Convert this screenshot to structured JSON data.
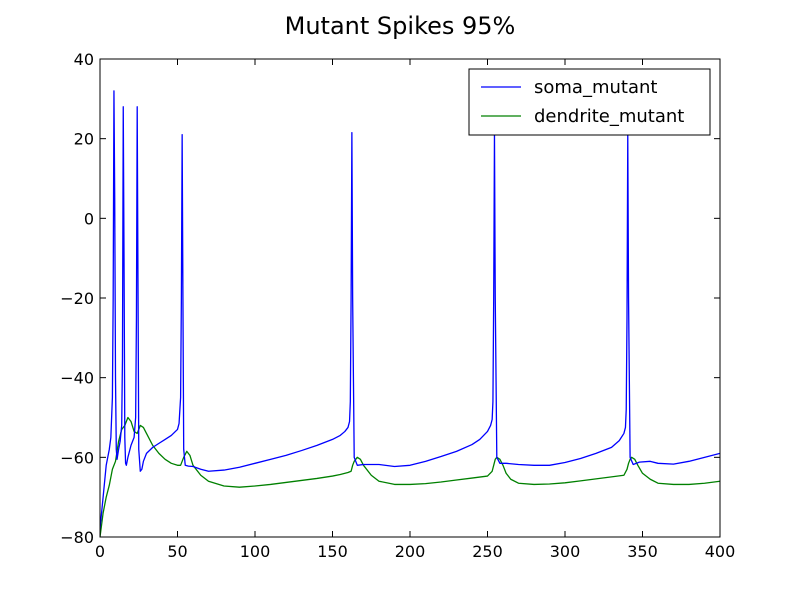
{
  "chart_data": {
    "type": "line",
    "title": "Mutant Spikes 95%",
    "xlabel": "",
    "ylabel": "",
    "xlim": [
      0,
      400
    ],
    "ylim": [
      -80,
      40
    ],
    "x_ticks": [
      0,
      50,
      100,
      150,
      200,
      250,
      300,
      350,
      400
    ],
    "y_ticks": [
      -80,
      -60,
      -40,
      -20,
      0,
      20,
      40
    ],
    "x_tick_labels": [
      "0",
      "50",
      "100",
      "150",
      "200",
      "250",
      "300",
      "350",
      "400"
    ],
    "y_tick_labels": [
      "−80",
      "−60",
      "−40",
      "−20",
      "0",
      "20",
      "40"
    ],
    "grid": false,
    "legend_position": "top-right",
    "series": [
      {
        "name": "soma_mutant",
        "color": "#0000ff",
        "x": [
          0,
          2,
          4,
          6,
          7,
          8,
          8.5,
          9,
          9.5,
          10,
          10.5,
          11,
          12,
          13,
          14,
          14.5,
          15,
          15.5,
          16,
          16.5,
          17,
          18,
          20,
          22,
          23,
          23.5,
          24,
          24.5,
          25,
          26,
          27,
          28,
          30,
          34,
          38,
          42,
          46,
          50,
          51,
          52,
          52.5,
          53,
          53.5,
          54,
          55,
          57,
          60,
          65,
          70,
          80,
          90,
          100,
          110,
          120,
          130,
          140,
          150,
          155,
          158,
          160,
          161,
          161.5,
          162,
          162.5,
          163,
          164,
          166,
          170,
          180,
          190,
          200,
          210,
          220,
          230,
          240,
          245,
          250,
          252,
          253,
          253.5,
          254,
          254.5,
          255,
          256,
          258,
          262,
          270,
          280,
          290,
          300,
          310,
          320,
          330,
          335,
          338,
          339,
          339.5,
          340,
          340.5,
          341,
          342,
          344,
          348,
          355,
          360,
          370,
          380,
          390,
          400
        ],
        "y": [
          -78,
          -70,
          -62,
          -58,
          -55,
          -45,
          -20,
          32,
          5,
          -40,
          -58,
          -60.5,
          -58,
          -56,
          -52,
          -35,
          28,
          -10,
          -55,
          -61.5,
          -62,
          -60,
          -57,
          -55,
          -50,
          -25,
          28,
          -15,
          -58,
          -63.5,
          -63,
          -61,
          -59,
          -57.5,
          -56.5,
          -55.5,
          -54.5,
          -53,
          -51.5,
          -45,
          -20,
          21,
          -20,
          -58,
          -62,
          -62.2,
          -62.3,
          -63,
          -63.5,
          -63.2,
          -62.5,
          -61.5,
          -60.5,
          -59.5,
          -58.3,
          -57,
          -55.5,
          -54.5,
          -53.5,
          -52.5,
          -51,
          -46,
          -20,
          21.5,
          -20,
          -60,
          -62,
          -61.8,
          -61.8,
          -62.3,
          -62,
          -61,
          -59.8,
          -58.5,
          -56.8,
          -55.5,
          -53.5,
          -52,
          -50.5,
          -46,
          -20,
          21.5,
          -20,
          -60,
          -61.5,
          -61.5,
          -61.8,
          -62,
          -62,
          -61.3,
          -60.3,
          -59,
          -57.5,
          -55.8,
          -54,
          -52.5,
          -48,
          -25,
          21,
          -20,
          -60,
          -61.8,
          -61.2,
          -61,
          -61.5,
          -61.7,
          -61,
          -60,
          -59
        ]
      },
      {
        "name": "dendrite_mutant",
        "color": "#008000",
        "x": [
          0,
          1,
          2,
          4,
          6,
          8,
          10,
          12,
          14,
          16,
          18,
          20,
          22,
          24,
          26,
          28,
          30,
          34,
          38,
          42,
          46,
          50,
          52,
          53,
          54,
          56,
          58,
          60,
          65,
          70,
          80,
          90,
          100,
          110,
          120,
          130,
          140,
          150,
          155,
          160,
          162,
          163,
          164,
          166,
          168,
          170,
          175,
          180,
          190,
          200,
          210,
          220,
          230,
          240,
          250,
          253,
          254,
          255,
          256,
          258,
          260,
          262,
          265,
          270,
          280,
          290,
          300,
          310,
          320,
          330,
          338,
          340,
          341,
          342,
          343,
          345,
          347,
          350,
          355,
          360,
          370,
          380,
          390,
          400
        ],
        "y": [
          -80,
          -77,
          -74,
          -70,
          -67,
          -63,
          -61,
          -56,
          -53,
          -52,
          -50,
          -51,
          -53.5,
          -54,
          -52,
          -52.5,
          -54,
          -57,
          -59,
          -60.5,
          -61.5,
          -62,
          -62,
          -61,
          -60,
          -58.5,
          -59.5,
          -62,
          -64.5,
          -66,
          -67.2,
          -67.5,
          -67.2,
          -66.8,
          -66.3,
          -65.8,
          -65.3,
          -64.7,
          -64.3,
          -63.8,
          -63.5,
          -62,
          -61,
          -60,
          -60.5,
          -62,
          -64.5,
          -66,
          -66.8,
          -66.8,
          -66.6,
          -66.2,
          -65.7,
          -65.2,
          -64.7,
          -63.5,
          -62,
          -60.5,
          -60,
          -60.5,
          -62,
          -64,
          -65.5,
          -66.5,
          -66.8,
          -66.7,
          -66.4,
          -65.9,
          -65.4,
          -64.9,
          -64.5,
          -63,
          -61.5,
          -60.5,
          -60,
          -60.5,
          -62,
          -64,
          -65.5,
          -66.5,
          -66.8,
          -66.8,
          -66.5,
          -66
        ]
      }
    ]
  }
}
